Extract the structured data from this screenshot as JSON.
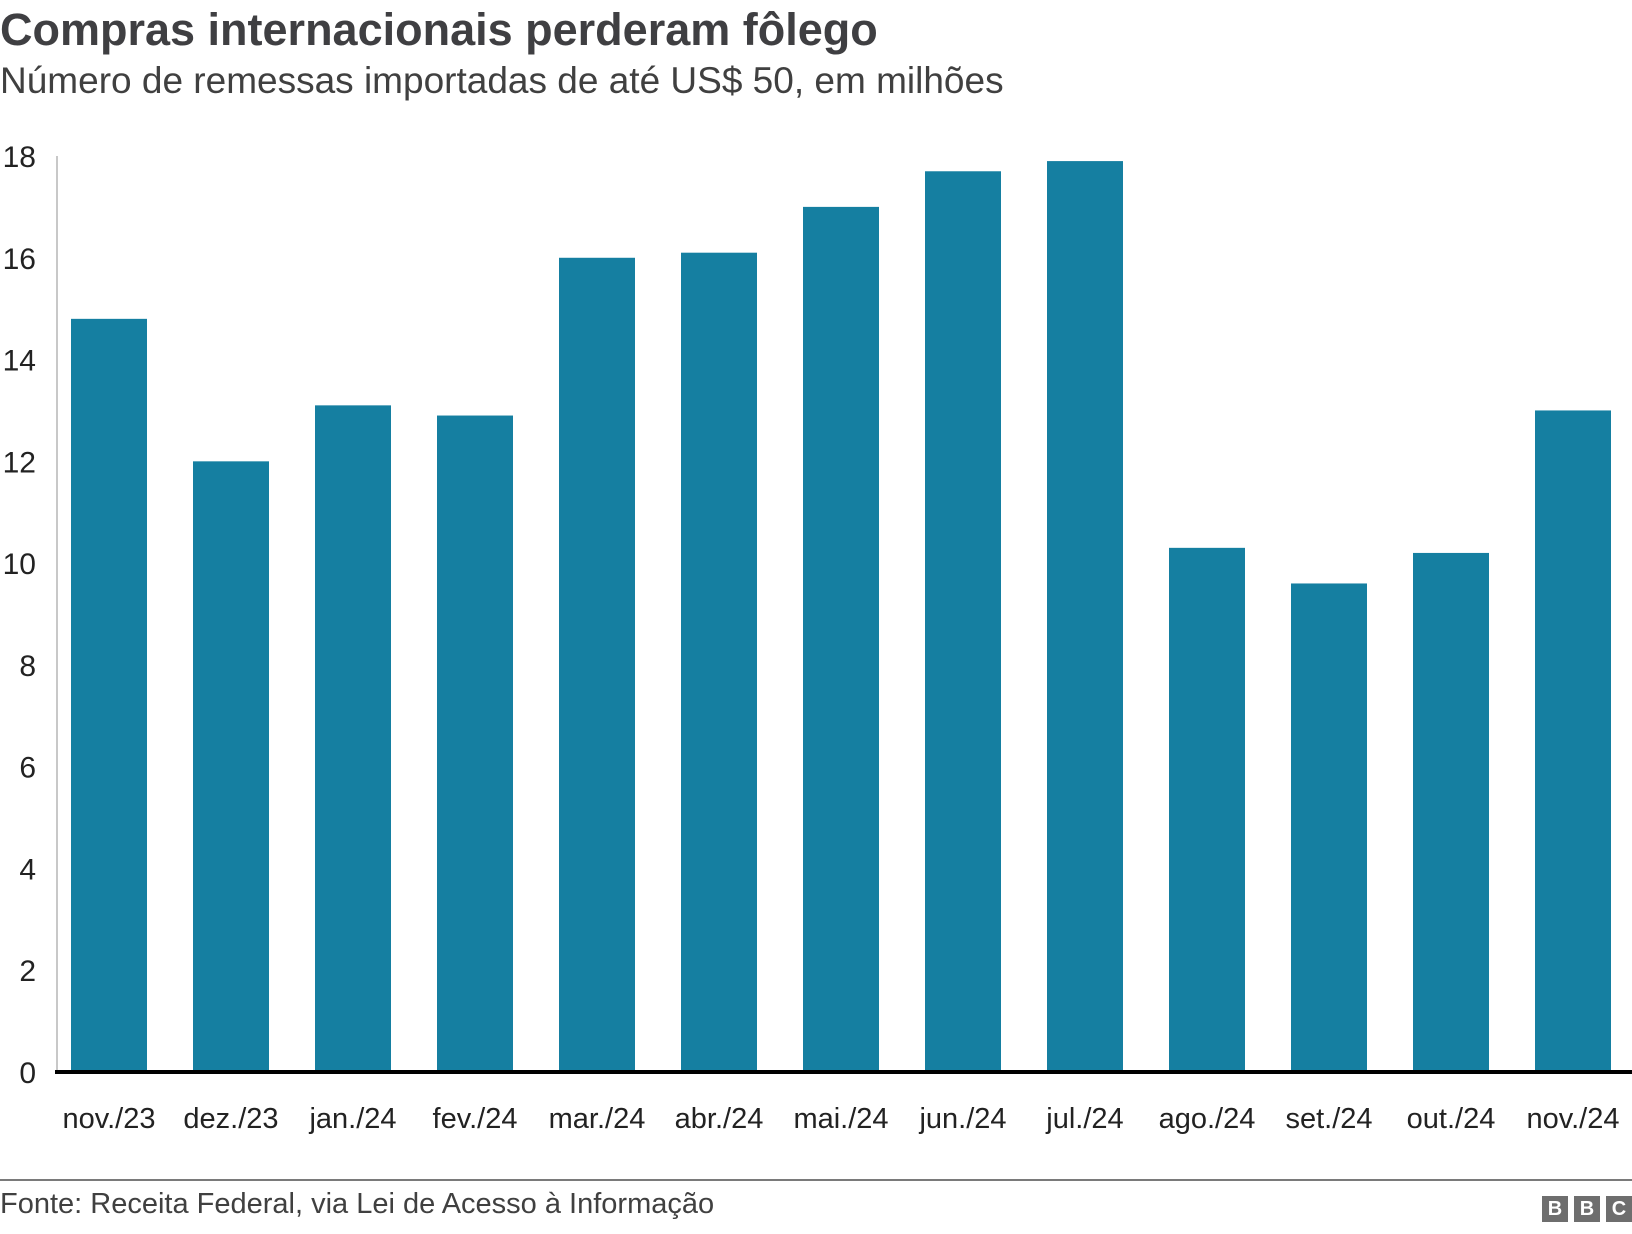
{
  "chart_data": {
    "type": "bar",
    "title": "Compras internacionais perderam fôlego",
    "subtitle": "Número de remessas importadas de até US$ 50, em milhões",
    "categories": [
      "nov./23",
      "dez./23",
      "jan./24",
      "fev./24",
      "mar./24",
      "abr./24",
      "mai./24",
      "jun./24",
      "jul./24",
      "ago./24",
      "set./24",
      "out./24",
      "nov./24"
    ],
    "values": [
      14.8,
      12.0,
      13.1,
      12.9,
      16.0,
      16.1,
      17.0,
      17.7,
      17.9,
      10.3,
      9.6,
      10.2,
      13.0
    ],
    "xlabel": "",
    "ylabel": "",
    "ylim": [
      0,
      18
    ],
    "yticks": [
      "0",
      "2",
      "4",
      "6",
      "8",
      "10",
      "12",
      "14",
      "16",
      "18"
    ],
    "grid": false,
    "bar_color": "#157fa1"
  },
  "footer": {
    "source": "Fonte: Receita Federal, via Lei de Acesso à Informação",
    "logo": [
      "B",
      "B",
      "C"
    ]
  }
}
